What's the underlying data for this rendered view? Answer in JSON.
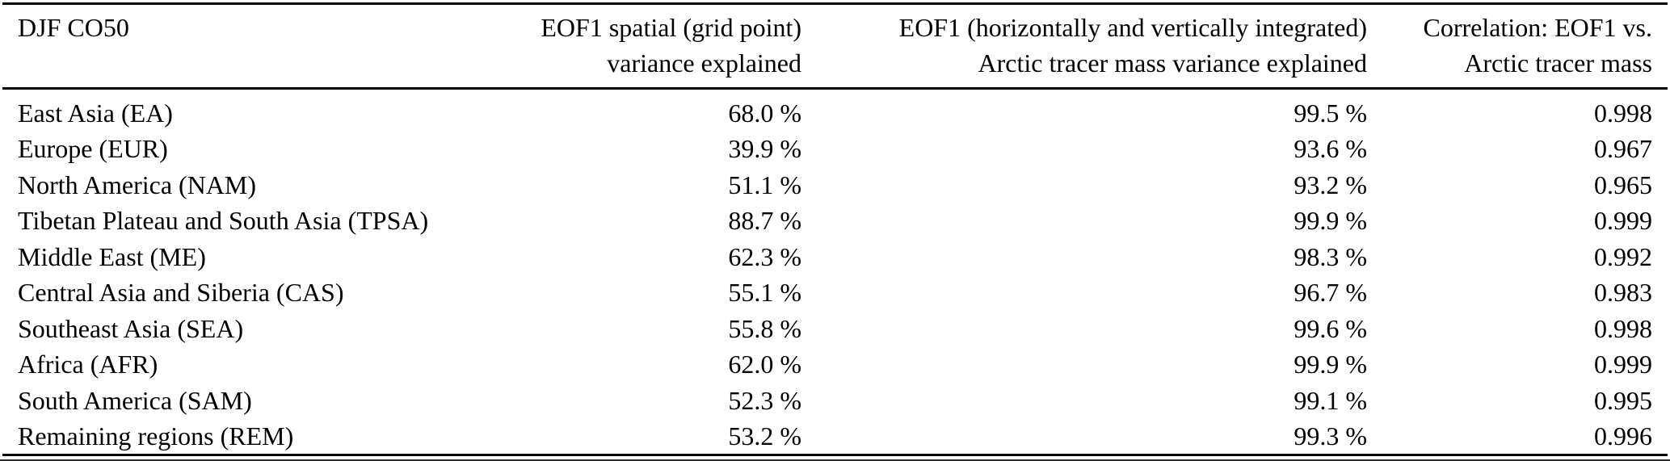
{
  "table": {
    "text_color": "#000000",
    "background_color": "#ffffff",
    "rule_color": "#000000",
    "columns": [
      {
        "line1": "DJF CO50",
        "line2": ""
      },
      {
        "line1": "EOF1 spatial (grid point)",
        "line2": "variance explained"
      },
      {
        "line1": "EOF1 (horizontally and vertically integrated)",
        "line2": "Arctic tracer mass variance explained"
      },
      {
        "line1": "Correlation: EOF1 vs.",
        "line2": "Arctic tracer mass"
      }
    ],
    "rows": [
      {
        "region": "East Asia (EA)",
        "spatial_variance": "68.0 %",
        "arctic_variance": "99.5 %",
        "correlation": "0.998"
      },
      {
        "region": "Europe (EUR)",
        "spatial_variance": "39.9 %",
        "arctic_variance": "93.6 %",
        "correlation": "0.967"
      },
      {
        "region": "North America (NAM)",
        "spatial_variance": "51.1 %",
        "arctic_variance": "93.2 %",
        "correlation": "0.965"
      },
      {
        "region": "Tibetan Plateau and South Asia (TPSA)",
        "spatial_variance": "88.7 %",
        "arctic_variance": "99.9 %",
        "correlation": "0.999"
      },
      {
        "region": "Middle East (ME)",
        "spatial_variance": "62.3 %",
        "arctic_variance": "98.3 %",
        "correlation": "0.992"
      },
      {
        "region": "Central Asia and Siberia (CAS)",
        "spatial_variance": "55.1 %",
        "arctic_variance": "96.7 %",
        "correlation": "0.983"
      },
      {
        "region": "Southeast Asia (SEA)",
        "spatial_variance": "55.8 %",
        "arctic_variance": "99.6 %",
        "correlation": "0.998"
      },
      {
        "region": "Africa (AFR)",
        "spatial_variance": "62.0 %",
        "arctic_variance": "99.9 %",
        "correlation": "0.999"
      },
      {
        "region": "South America (SAM)",
        "spatial_variance": "52.3 %",
        "arctic_variance": "99.1 %",
        "correlation": "0.995"
      },
      {
        "region": "Remaining regions (REM)",
        "spatial_variance": "53.2 %",
        "arctic_variance": "99.3 %",
        "correlation": "0.996"
      }
    ]
  }
}
